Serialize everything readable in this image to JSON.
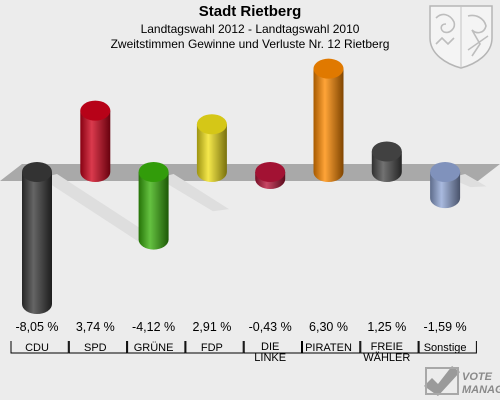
{
  "header": {
    "title": "Stadt Rietberg",
    "subtitle1": "Landtagswahl 2012 - Landtagswahl 2010",
    "subtitle2": "Zweitstimmen Gewinne und Verluste Nr. 12 Rietberg"
  },
  "brand": {
    "line1": "VOTE",
    "line2": "MANAGER"
  },
  "chart_data": {
    "type": "bar",
    "title": "Landtagswahl 2012 - Landtagswahl 2010",
    "xlabel": "",
    "ylabel": "",
    "categories": [
      "CDU",
      "SPD",
      "GRÜNE",
      "FDP",
      "DIE LINKE",
      "PIRATEN",
      "FREIE WÄHLER",
      "Sonstige"
    ],
    "category_lines": [
      [
        "CDU"
      ],
      [
        "SPD"
      ],
      [
        "GRÜNE"
      ],
      [
        "FDP"
      ],
      [
        "DIE",
        "LINKE"
      ],
      [
        "PIRATEN"
      ],
      [
        "FREIE",
        "WÄHLER"
      ],
      [
        "Sonstige"
      ]
    ],
    "values": [
      -8.05,
      3.74,
      -4.12,
      2.91,
      -0.43,
      6.3,
      1.25,
      -1.59
    ],
    "value_labels": [
      "-8,05 %",
      "3,74 %",
      "-4,12 %",
      "2,91 %",
      "-0,43 %",
      "6,30 %",
      "1,25 %",
      "-1,59 %"
    ],
    "colors": [
      "#3a3a3a",
      "#d0021b",
      "#39b10b",
      "#f2e21a",
      "#b8153a",
      "#ff8a00",
      "#4a4a4a",
      "#91a6d6"
    ],
    "grid": false,
    "legend": "none"
  }
}
